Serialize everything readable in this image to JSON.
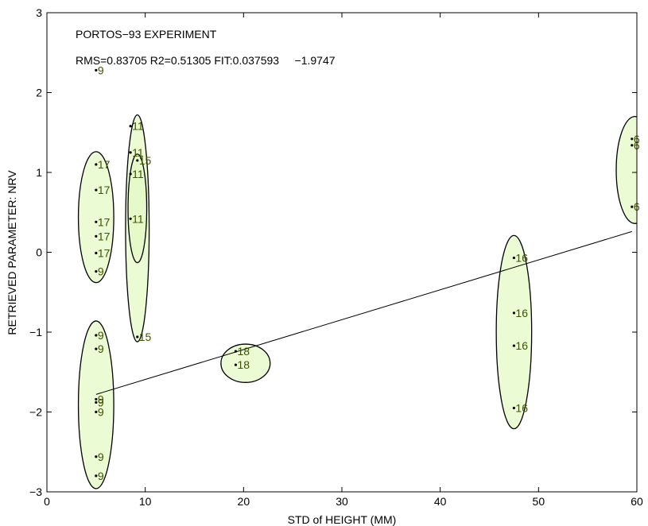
{
  "chart_data": {
    "type": "scatter",
    "title": "PORTOS−93 EXPERIMENT",
    "annotation": "RMS=0.83705 R2=0.51305 FIT:0.037593     −1.9747",
    "xlabel": "STD of HEIGHT (MM)",
    "ylabel": "RETRIEVED PARAMETER: NRV",
    "xlim": [
      0,
      60
    ],
    "ylim": [
      -3,
      3
    ],
    "xticks": [
      0,
      10,
      20,
      30,
      40,
      50,
      60
    ],
    "yticks": [
      -3,
      -2,
      -1,
      0,
      1,
      2,
      3
    ],
    "grid": false,
    "points": [
      {
        "x": 5,
        "y": 2.28,
        "label": "9"
      },
      {
        "x": 5,
        "y": 1.1,
        "label": "17"
      },
      {
        "x": 5,
        "y": 0.78,
        "label": "17"
      },
      {
        "x": 5,
        "y": 0.38,
        "label": "17"
      },
      {
        "x": 5,
        "y": 0.2,
        "label": "17"
      },
      {
        "x": 5,
        "y": -0.01,
        "label": "17"
      },
      {
        "x": 5,
        "y": -0.24,
        "label": "9"
      },
      {
        "x": 5,
        "y": -1.04,
        "label": "9"
      },
      {
        "x": 5,
        "y": -1.21,
        "label": "9"
      },
      {
        "x": 5,
        "y": -1.84,
        "label": "9"
      },
      {
        "x": 5,
        "y": -1.88,
        "label": "9"
      },
      {
        "x": 5,
        "y": -2.0,
        "label": "9"
      },
      {
        "x": 5,
        "y": -2.56,
        "label": "9"
      },
      {
        "x": 5,
        "y": -2.8,
        "label": "9"
      },
      {
        "x": 8.5,
        "y": 1.58,
        "label": "11"
      },
      {
        "x": 8.5,
        "y": 1.25,
        "label": "11"
      },
      {
        "x": 9.2,
        "y": 1.15,
        "label": "15"
      },
      {
        "x": 8.5,
        "y": 0.98,
        "label": "11"
      },
      {
        "x": 8.5,
        "y": 0.42,
        "label": "11"
      },
      {
        "x": 9.2,
        "y": -1.06,
        "label": "15"
      },
      {
        "x": 19.2,
        "y": -1.24,
        "label": "18"
      },
      {
        "x": 19.2,
        "y": -1.41,
        "label": "18"
      },
      {
        "x": 47.5,
        "y": -0.07,
        "label": "16"
      },
      {
        "x": 47.5,
        "y": -0.76,
        "label": "16"
      },
      {
        "x": 47.5,
        "y": -1.17,
        "label": "16"
      },
      {
        "x": 47.5,
        "y": -1.95,
        "label": "16"
      },
      {
        "x": 59.5,
        "y": 1.42,
        "label": "6"
      },
      {
        "x": 59.5,
        "y": 1.34,
        "label": "6"
      },
      {
        "x": 59.5,
        "y": 0.57,
        "label": "6"
      }
    ],
    "fit_line": {
      "x": [
        5,
        59.5
      ],
      "y": [
        -1.78,
        0.26
      ]
    },
    "clusters": [
      {
        "cx": 5,
        "cy": 0.44,
        "rx": 1.8,
        "ry": 0.82
      },
      {
        "cx": 5,
        "cy": -1.91,
        "rx": 1.8,
        "ry": 1.05
      },
      {
        "cx": 9.2,
        "cy": 0.3,
        "rx": 1.2,
        "ry": 1.42
      },
      {
        "cx": 9.2,
        "cy": 0.55,
        "rx": 0.95,
        "ry": 0.68
      },
      {
        "cx": 20.2,
        "cy": -1.39,
        "rx": 2.5,
        "ry": 0.24
      },
      {
        "cx": 47.5,
        "cy": -1.0,
        "rx": 1.8,
        "ry": 1.21
      },
      {
        "cx": 59.8,
        "cy": 1.03,
        "rx": 1.9,
        "ry": 0.67
      }
    ],
    "cluster_color": "#e4f9c6",
    "cluster_stroke": "#000000",
    "point_color": "#000000",
    "label_color": "#3f5000"
  }
}
